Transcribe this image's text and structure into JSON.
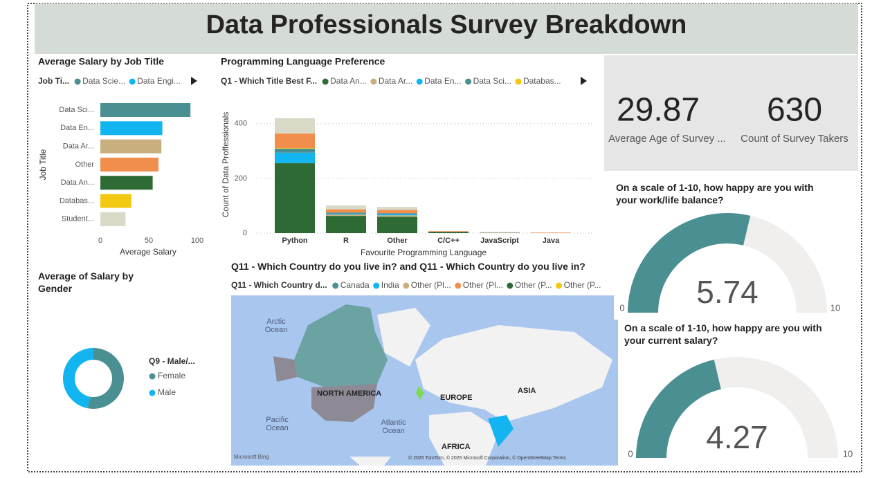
{
  "title": "Data Professionals Survey Breakdown",
  "kpis": [
    {
      "value": 29.87,
      "label": "Average Age of Survey ..."
    },
    {
      "value": 630,
      "label": "Count of Survey Takers"
    }
  ],
  "chart_data": [
    {
      "type": "bar",
      "horizontal": true,
      "title": "Average Salary by Job Title",
      "legend_title": "Job Ti...",
      "legend_items": [
        "Data Scie...",
        "Data Engi..."
      ],
      "categories": [
        "Data Sci...",
        "Data En...",
        "Data Ar...",
        "Other",
        "Data An...",
        "Databas...",
        "Student..."
      ],
      "values": [
        93,
        64,
        63,
        60,
        54,
        32,
        26
      ],
      "colors": [
        "#4a8f92",
        "#12b5f0",
        "#c8b07e",
        "#f28e4c",
        "#2e6b34",
        "#f2c811",
        "#d9d9c7"
      ],
      "xlim": [
        0,
        100
      ],
      "xticks": [
        0,
        50,
        100
      ],
      "xlabel": "Average Salary",
      "ylabel": "Job Title"
    },
    {
      "type": "stacked_bar",
      "title": "Programming Language Preference",
      "legend_title": "Q1 - Which Title Best F...",
      "categories": [
        "Python",
        "R",
        "Other",
        "C/C++",
        "JavaScript",
        "Java"
      ],
      "series": [
        {
          "name": "Data An...",
          "color": "#2e6b34",
          "values": [
            256,
            63,
            60,
            5,
            1,
            0
          ]
        },
        {
          "name": "Data Ar...",
          "color": "#c8b07e",
          "values": [
            0,
            5,
            5,
            0,
            0,
            0
          ]
        },
        {
          "name": "Data En...",
          "color": "#12b5f0",
          "values": [
            38,
            3,
            4,
            0,
            0,
            0
          ]
        },
        {
          "name": "Data Sci...",
          "color": "#4a8f92",
          "values": [
            15,
            4,
            4,
            0,
            0,
            0
          ]
        },
        {
          "name": "Databas...",
          "color": "#f2c811",
          "values": [
            2,
            0,
            0,
            0,
            0,
            0
          ]
        },
        {
          "color": "#f28e4c",
          "values": [
            53,
            12,
            12,
            2,
            0,
            2
          ]
        },
        {
          "color": "#d9d9c7",
          "values": [
            56,
            14,
            11,
            0,
            4,
            0
          ]
        }
      ],
      "ylim": [
        0,
        440
      ],
      "yticks": [
        0,
        200,
        400
      ],
      "grid": true,
      "xlabel": "Favourite Programming Language",
      "ylabel": "Count of Data Proffessionals"
    },
    {
      "type": "donut",
      "title": "Average of Salary by Gender",
      "legend_title": "Q9 - Male/...",
      "categories": [
        "Female",
        "Male"
      ],
      "values": [
        53,
        47
      ],
      "colors": [
        "#4a8f92",
        "#12b5f0"
      ]
    },
    {
      "type": "gauge",
      "title": "On a scale of 1-10, how happy are you with your work/life balance?",
      "value": 5.74,
      "min": 0,
      "max": 10,
      "color": "#4a8f92"
    },
    {
      "type": "gauge",
      "title": "On a scale of 1-10, how happy are you with your current salary?",
      "value": 4.27,
      "min": 0,
      "max": 10,
      "color": "#4a8f92"
    }
  ],
  "map": {
    "title": "Q11 - Which Country do you live in? and Q11 - Which Country do you live in?",
    "legend_title": "Q11 - Which Country d...",
    "legend": [
      {
        "name": "Canada",
        "color": "#4a8f92"
      },
      {
        "name": "India",
        "color": "#12b5f0"
      },
      {
        "name": "Other (Pl...",
        "color": "#c8b07e"
      },
      {
        "name": "Other (Pl...",
        "color": "#f28e4c"
      },
      {
        "name": "Other (P...",
        "color": "#2e6b34"
      },
      {
        "name": "Other (P...",
        "color": "#f2c811"
      }
    ],
    "oceans": [
      "Arctic Ocean",
      "Pacific Ocean",
      "Atlantic Ocean"
    ],
    "continents": [
      "NORTH AMERICA",
      "EUROPE",
      "ASIA",
      "AFRICA"
    ],
    "logo": "Microsoft Bing",
    "attribution": "© 2025 TomTom, © 2025 Microsoft Corporation, © OpenStreetMap  Terms"
  }
}
